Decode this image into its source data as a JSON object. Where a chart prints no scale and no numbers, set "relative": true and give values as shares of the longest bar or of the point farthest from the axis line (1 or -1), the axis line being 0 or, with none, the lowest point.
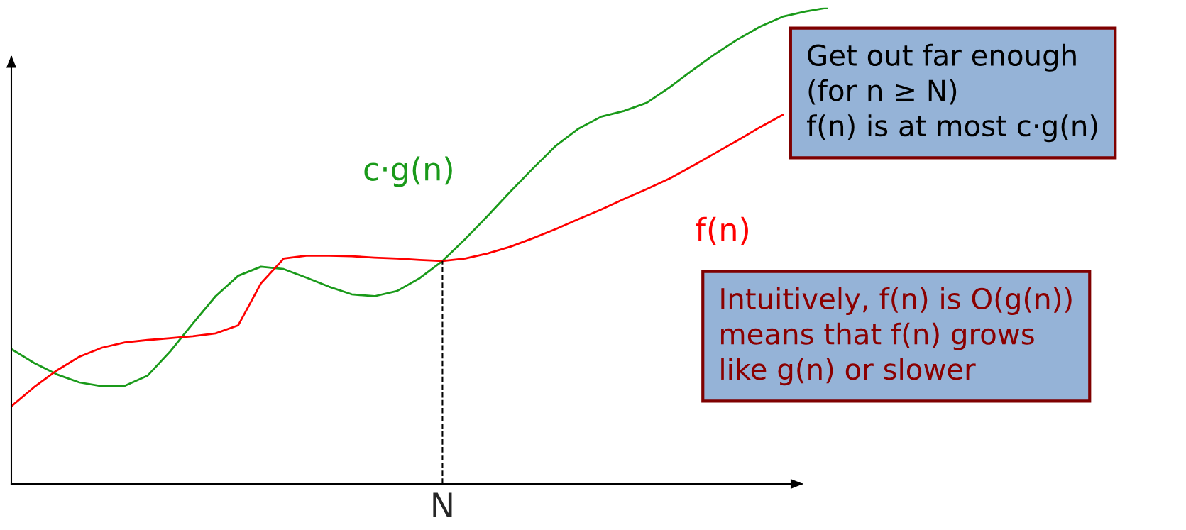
{
  "chart_data": {
    "type": "line",
    "relative": true,
    "legend": false,
    "categories": [
      null,
      null,
      null,
      null,
      null,
      null,
      null,
      null,
      null,
      null,
      null,
      null,
      null,
      null,
      null,
      null,
      null,
      null,
      null,
      null,
      null,
      null,
      null,
      null,
      null,
      null,
      null,
      null,
      null,
      null,
      null,
      null,
      null,
      null,
      null,
      null,
      null
    ],
    "series": [
      {
        "name": "c·g(n)",
        "color": "#1a9a1a",
        "values": [
          0.283,
          0.254,
          0.23,
          0.213,
          0.205,
          0.206,
          0.227,
          0.278,
          0.337,
          0.394,
          0.437,
          0.456,
          0.451,
          0.433,
          0.414,
          0.398,
          0.394,
          0.405,
          0.432,
          0.468,
          0.514,
          0.563,
          0.614,
          0.663,
          0.71,
          0.746,
          0.771,
          0.783,
          0.8,
          0.832,
          0.868,
          0.902,
          0.933,
          0.96,
          0.981,
          0.992,
          1
        ]
      },
      {
        "name": "f(n)",
        "color": "#ff0000",
        "values": [
          0.163,
          0.203,
          0.238,
          0.267,
          0.286,
          0.297,
          0.302,
          0.306,
          0.31,
          0.316,
          0.333,
          0.421,
          0.473,
          0.479,
          0.479,
          0.478,
          0.475,
          0.473,
          0.47,
          0.468,
          0.473,
          0.484,
          0.498,
          0.516,
          0.535,
          0.556,
          0.576,
          0.598,
          0.619,
          0.641,
          0.667,
          0.694,
          0.721,
          0.749,
          0.775,
          null,
          null
        ]
      }
    ],
    "annotations": [
      "N",
      "Get out far enough\n(for n ≥ N)\nf(n) is at most c·g(n)",
      "Intuitively, f(n) is O(g(n))\nmeans that f(n) grows\nlike g(n) or slower"
    ]
  }
}
